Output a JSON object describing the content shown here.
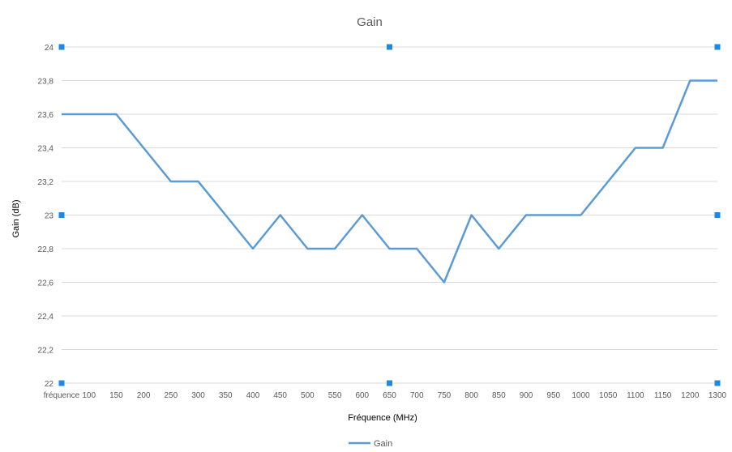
{
  "chart_data": {
    "type": "line",
    "title": "Gain",
    "xlabel": "Fréquence (MHz)",
    "ylabel": "Gain (dB)",
    "categories": [
      "fréquence",
      "100",
      "150",
      "200",
      "250",
      "300",
      "350",
      "400",
      "450",
      "500",
      "550",
      "600",
      "650",
      "700",
      "750",
      "800",
      "850",
      "900",
      "950",
      "1000",
      "1050",
      "1100",
      "1150",
      "1200",
      "1300"
    ],
    "y_ticks": [
      "22",
      "22,2",
      "22,4",
      "22,6",
      "22,8",
      "23",
      "23,2",
      "23,4",
      "23,6",
      "23,8",
      "24"
    ],
    "ylim": [
      22,
      24
    ],
    "grid": true,
    "legend_position": "bottom",
    "series": [
      {
        "name": "Gain",
        "color": "#5B9BD5",
        "values": [
          23.6,
          23.6,
          23.6,
          23.4,
          23.2,
          23.2,
          23.0,
          22.8,
          23.0,
          22.8,
          22.8,
          23.0,
          22.8,
          22.8,
          22.6,
          23.0,
          22.8,
          23.0,
          23.0,
          23.0,
          23.2,
          23.4,
          23.4,
          23.8,
          23.8
        ]
      }
    ]
  },
  "colors": {
    "gridline": "#d9d9d9",
    "selection_handle": "#1e88e5"
  }
}
